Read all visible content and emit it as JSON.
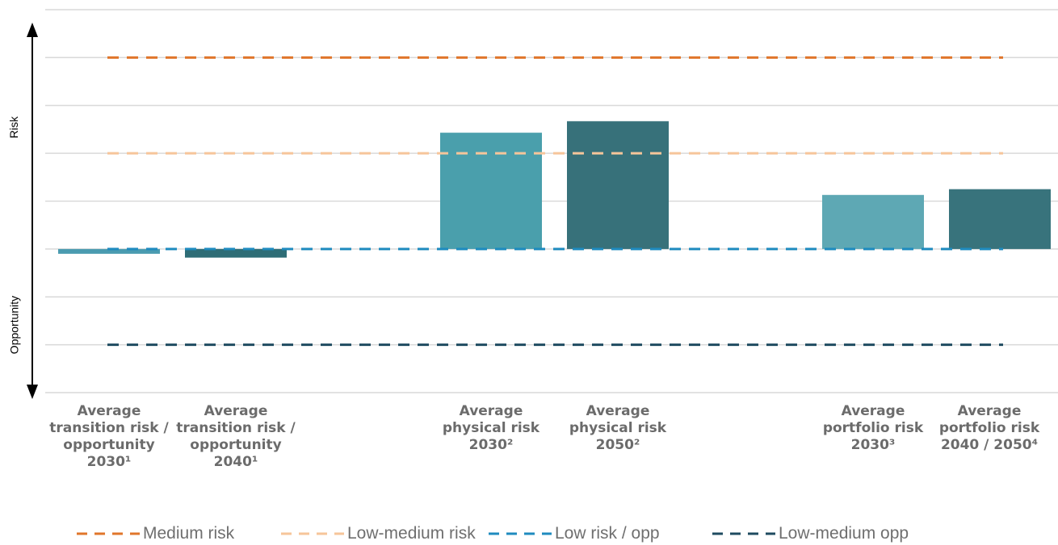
{
  "chart_data": {
    "type": "bar",
    "categories": [
      "Average\ntransition risk /\nopportunity\n2030¹",
      "Average\ntransition risk /\nopportunity\n2040¹",
      "Average\nphysical risk\n2030²",
      "Average\nphysical risk\n2050²",
      "Average\nportfolio risk\n2030³",
      "Average\nportfolio risk\n2040 / 2050⁴"
    ],
    "values": [
      -0.1,
      -0.18,
      2.43,
      2.67,
      1.13,
      1.25
    ],
    "bar_colors": [
      "#4a9bb0",
      "#2e6d76",
      "#4a9fac",
      "#37717a",
      "#5ea8b4",
      "#38737c"
    ],
    "ylim": [
      -3.0,
      5.0
    ],
    "grid": true,
    "reference_lines": [
      {
        "name": "Medium risk",
        "value": 4.0,
        "color": "#e0762b"
      },
      {
        "name": "Low-medium risk",
        "value": 2.0,
        "color": "#f6c59a"
      },
      {
        "name": "Low risk / opp",
        "value": 0.0,
        "color": "#1f8bbf"
      },
      {
        "name": "Low-medium opp",
        "value": -2.0,
        "color": "#1f4b60"
      }
    ],
    "axis_labels": {
      "top": "Risk",
      "bottom": "Opportunity"
    },
    "legend_position": "bottom"
  }
}
